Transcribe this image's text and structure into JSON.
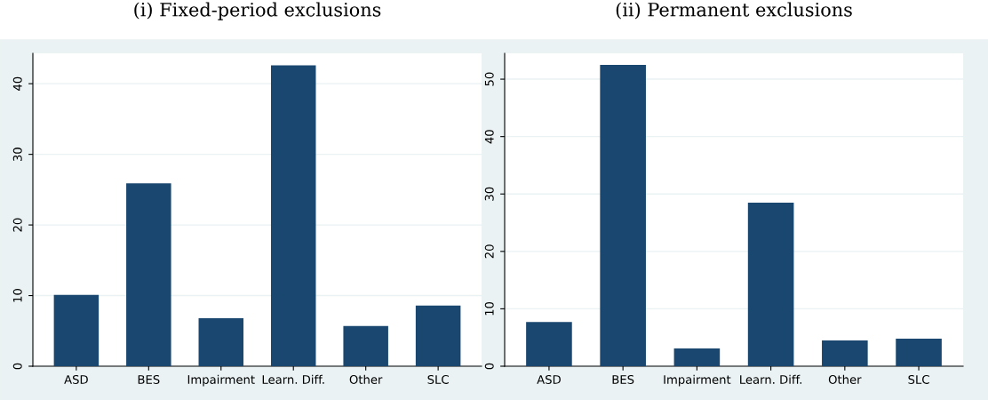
{
  "chart_data": [
    {
      "type": "bar",
      "title": "(i) Fixed-period exclusions",
      "categories": [
        "ASD",
        "BES",
        "Impairment",
        "Learn. Diff.",
        "Other",
        "SLC"
      ],
      "values": [
        10.1,
        25.9,
        6.8,
        42.6,
        5.7,
        8.6
      ],
      "color": "#1a476f",
      "ylim": [
        0,
        44.3
      ],
      "yticks": [
        0,
        10,
        20,
        30,
        40
      ],
      "grid": "y"
    },
    {
      "type": "bar",
      "title": "(ii) Permanent exclusions",
      "categories": [
        "ASD",
        "BES",
        "Impairment",
        "Learn. Diff.",
        "Other",
        "SLC"
      ],
      "values": [
        7.7,
        52.5,
        3.1,
        28.5,
        4.5,
        4.8
      ],
      "color": "#1a476f",
      "ylim": [
        0,
        54.5
      ],
      "yticks": [
        0,
        10,
        20,
        30,
        40,
        50
      ],
      "grid": "y"
    }
  ]
}
